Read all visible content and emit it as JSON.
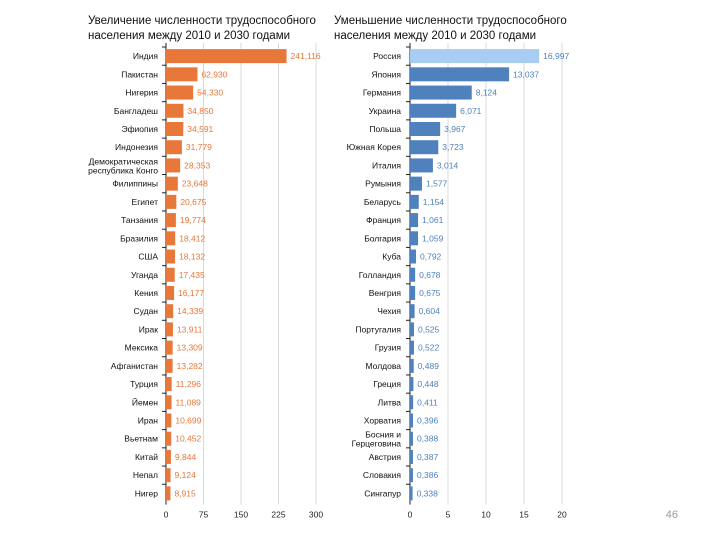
{
  "page": {
    "number": "46"
  },
  "chart_data": [
    {
      "type": "bar",
      "orientation": "horizontal",
      "title": "Увеличение численности трудоспособного населения между 2010 и 2030 годами",
      "xlim": [
        0,
        300
      ],
      "xticks": [
        "0",
        "75",
        "150",
        "225",
        "300"
      ],
      "tick_values": [
        0,
        75,
        150,
        225,
        300
      ],
      "bar_color": "#e8773a",
      "label_color": "#e8773a",
      "categories": [
        "Индия",
        "Пакистан",
        "Нигерия",
        "Бангладеш",
        "Эфиопия",
        "Индонезия",
        "Демократическая республика Конго",
        "Филиппины",
        "Египет",
        "Танзания",
        "Бразилия",
        "США",
        "Уганда",
        "Кения",
        "Судан",
        "Ирак",
        "Мексика",
        "Афганистан",
        "Турция",
        "Йемен",
        "Иран",
        "Вьетнам",
        "Китай",
        "Непал",
        "Нигер"
      ],
      "category_lines": [
        [
          "Индия"
        ],
        [
          "Пакистан"
        ],
        [
          "Нигерия"
        ],
        [
          "Бангладеш"
        ],
        [
          "Эфиопия"
        ],
        [
          "Индонезия"
        ],
        [
          "Демократическая",
          "республика Конго"
        ],
        [
          "Филиппины"
        ],
        [
          "Египет"
        ],
        [
          "Танзания"
        ],
        [
          "Бразилия"
        ],
        [
          "США"
        ],
        [
          "Уганда"
        ],
        [
          "Кения"
        ],
        [
          "Судан"
        ],
        [
          "Ирак"
        ],
        [
          "Мексика"
        ],
        [
          "Афганистан"
        ],
        [
          "Турция"
        ],
        [
          "Йемен"
        ],
        [
          "Иран"
        ],
        [
          "Вьетнам"
        ],
        [
          "Китай"
        ],
        [
          "Непал"
        ],
        [
          "Нигер"
        ]
      ],
      "values": [
        241.116,
        62.93,
        54.33,
        34.85,
        34.591,
        31.779,
        28.353,
        23.648,
        20.675,
        19.774,
        18.412,
        18.132,
        17.435,
        16.177,
        14.339,
        13.911,
        13.309,
        13.282,
        11.296,
        11.089,
        10.699,
        10.452,
        9.844,
        9.124,
        8.915
      ],
      "labels": [
        "241,116",
        "62,930",
        "54,330",
        "34,850",
        "34,591",
        "31,779",
        "28,353",
        "23,648",
        "20,675",
        "19,774",
        "18,412",
        "18,132",
        "17,435",
        "16,177",
        "14,339",
        "13,911",
        "13,309",
        "13,282",
        "11,296",
        "11,089",
        "10,699",
        "10,452",
        "9,844",
        "9,124",
        "8,915"
      ]
    },
    {
      "type": "bar",
      "orientation": "horizontal",
      "title": "Уменьшение численности трудоспособного населения между 2010 и 2030 годами",
      "xlim": [
        0,
        20
      ],
      "xticks": [
        "0",
        "5",
        "10",
        "15",
        "20"
      ],
      "tick_values": [
        0,
        5,
        10,
        15,
        20
      ],
      "bar_color": "#4f81bd",
      "highlight_index": 0,
      "highlight_color": "#a9cdf2",
      "label_color": "#4f81bd",
      "categories": [
        "Россия",
        "Япония",
        "Германия",
        "Украина",
        "Польша",
        "Южная Корея",
        "Италия",
        "Румыния",
        "Беларусь",
        "Франция",
        "Болгария",
        "Куба",
        "Голландия",
        "Венгрия",
        "Чехия",
        "Португалия",
        "Грузия",
        "Молдова",
        "Греция",
        "Литва",
        "Хорватия",
        "Босния и Герцеговина",
        "Австрия",
        "Словакия",
        "Сингапур"
      ],
      "category_lines": [
        [
          "Россия"
        ],
        [
          "Япония"
        ],
        [
          "Германия"
        ],
        [
          "Украина"
        ],
        [
          "Польша"
        ],
        [
          "Южная Корея"
        ],
        [
          "Италия"
        ],
        [
          "Румыния"
        ],
        [
          "Беларусь"
        ],
        [
          "Франция"
        ],
        [
          "Болгария"
        ],
        [
          "Куба"
        ],
        [
          "Голландия"
        ],
        [
          "Венгрия"
        ],
        [
          "Чехия"
        ],
        [
          "Португалия"
        ],
        [
          "Грузия"
        ],
        [
          "Молдова"
        ],
        [
          "Греция"
        ],
        [
          "Литва"
        ],
        [
          "Хорватия"
        ],
        [
          "Босния и",
          "Герцеговина"
        ],
        [
          "Австрия"
        ],
        [
          "Словакия"
        ],
        [
          "Сингапур"
        ]
      ],
      "values": [
        16.997,
        13.037,
        8.124,
        6.071,
        3.967,
        3.723,
        3.014,
        1.577,
        1.154,
        1.061,
        1.059,
        0.792,
        0.678,
        0.675,
        0.604,
        0.525,
        0.522,
        0.489,
        0.448,
        0.411,
        0.396,
        0.388,
        0.387,
        0.386,
        0.338
      ],
      "labels": [
        "16,997",
        "13,037",
        "8,124",
        "6,071",
        "3,967",
        "3,723",
        "3,014",
        "1,577",
        "1,154",
        "1,061",
        "1,059",
        "0,792",
        "0,678",
        "0,675",
        "0,604",
        "0,525",
        "0,522",
        "0,489",
        "0,448",
        "0,411",
        "0,396",
        "0,388",
        "0,387",
        "0,386",
        "0,338"
      ]
    }
  ]
}
